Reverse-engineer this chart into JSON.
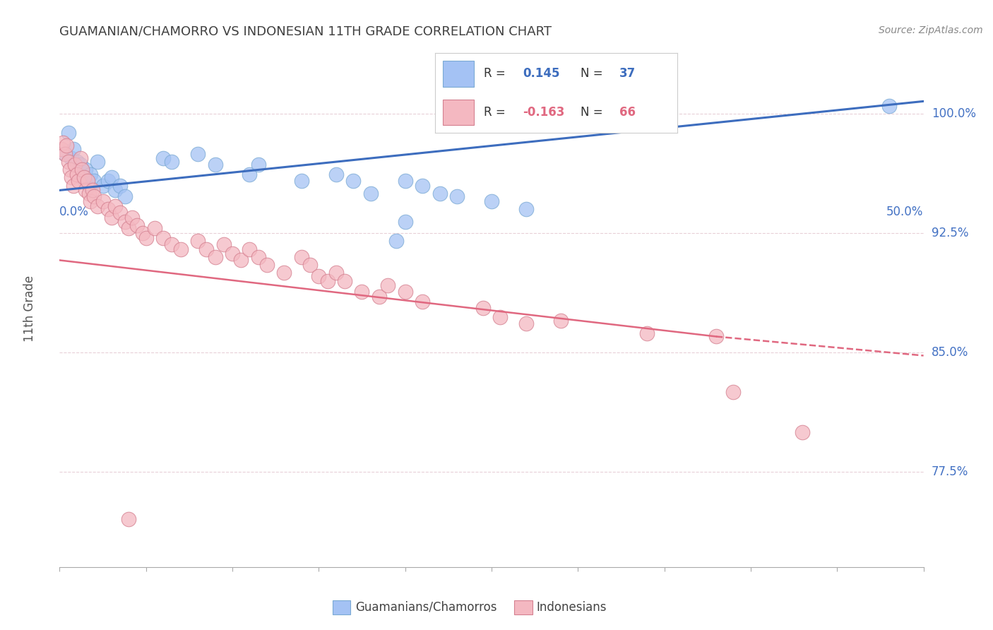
{
  "title": "GUAMANIAN/CHAMORRO VS INDONESIAN 11TH GRADE CORRELATION CHART",
  "source": "Source: ZipAtlas.com",
  "ylabel": "11th Grade",
  "ytick_labels": [
    "77.5%",
    "85.0%",
    "92.5%",
    "100.0%"
  ],
  "ytick_values": [
    0.775,
    0.85,
    0.925,
    1.0
  ],
  "xlim": [
    0.0,
    0.5
  ],
  "ylim": [
    0.715,
    1.04
  ],
  "blue_scatter_color": "#a4c2f4",
  "blue_line_color": "#3d6dbe",
  "pink_scatter_color": "#f4b8c1",
  "pink_line_color": "#e06880",
  "blue_points": [
    [
      0.003,
      0.975
    ],
    [
      0.005,
      0.988
    ],
    [
      0.007,
      0.972
    ],
    [
      0.008,
      0.978
    ],
    [
      0.01,
      0.97
    ],
    [
      0.012,
      0.968
    ],
    [
      0.013,
      0.96
    ],
    [
      0.015,
      0.965
    ],
    [
      0.017,
      0.955
    ],
    [
      0.018,
      0.962
    ],
    [
      0.02,
      0.958
    ],
    [
      0.022,
      0.97
    ],
    [
      0.025,
      0.955
    ],
    [
      0.028,
      0.958
    ],
    [
      0.03,
      0.96
    ],
    [
      0.032,
      0.952
    ],
    [
      0.035,
      0.955
    ],
    [
      0.038,
      0.948
    ],
    [
      0.06,
      0.972
    ],
    [
      0.065,
      0.97
    ],
    [
      0.08,
      0.975
    ],
    [
      0.09,
      0.968
    ],
    [
      0.11,
      0.962
    ],
    [
      0.115,
      0.968
    ],
    [
      0.14,
      0.958
    ],
    [
      0.16,
      0.962
    ],
    [
      0.17,
      0.958
    ],
    [
      0.18,
      0.95
    ],
    [
      0.2,
      0.958
    ],
    [
      0.21,
      0.955
    ],
    [
      0.22,
      0.95
    ],
    [
      0.23,
      0.948
    ],
    [
      0.25,
      0.945
    ],
    [
      0.27,
      0.94
    ],
    [
      0.2,
      0.932
    ],
    [
      0.195,
      0.92
    ],
    [
      0.48,
      1.005
    ]
  ],
  "pink_points": [
    [
      0.001,
      0.978
    ],
    [
      0.002,
      0.982
    ],
    [
      0.003,
      0.975
    ],
    [
      0.004,
      0.98
    ],
    [
      0.005,
      0.97
    ],
    [
      0.006,
      0.965
    ],
    [
      0.007,
      0.96
    ],
    [
      0.008,
      0.955
    ],
    [
      0.009,
      0.968
    ],
    [
      0.01,
      0.962
    ],
    [
      0.011,
      0.958
    ],
    [
      0.012,
      0.972
    ],
    [
      0.013,
      0.965
    ],
    [
      0.014,
      0.96
    ],
    [
      0.015,
      0.952
    ],
    [
      0.016,
      0.958
    ],
    [
      0.017,
      0.95
    ],
    [
      0.018,
      0.945
    ],
    [
      0.019,
      0.952
    ],
    [
      0.02,
      0.948
    ],
    [
      0.022,
      0.942
    ],
    [
      0.025,
      0.945
    ],
    [
      0.028,
      0.94
    ],
    [
      0.03,
      0.935
    ],
    [
      0.032,
      0.942
    ],
    [
      0.035,
      0.938
    ],
    [
      0.038,
      0.932
    ],
    [
      0.04,
      0.928
    ],
    [
      0.042,
      0.935
    ],
    [
      0.045,
      0.93
    ],
    [
      0.048,
      0.925
    ],
    [
      0.05,
      0.922
    ],
    [
      0.055,
      0.928
    ],
    [
      0.06,
      0.922
    ],
    [
      0.065,
      0.918
    ],
    [
      0.07,
      0.915
    ],
    [
      0.08,
      0.92
    ],
    [
      0.085,
      0.915
    ],
    [
      0.09,
      0.91
    ],
    [
      0.095,
      0.918
    ],
    [
      0.1,
      0.912
    ],
    [
      0.105,
      0.908
    ],
    [
      0.11,
      0.915
    ],
    [
      0.115,
      0.91
    ],
    [
      0.12,
      0.905
    ],
    [
      0.13,
      0.9
    ],
    [
      0.14,
      0.91
    ],
    [
      0.145,
      0.905
    ],
    [
      0.15,
      0.898
    ],
    [
      0.155,
      0.895
    ],
    [
      0.16,
      0.9
    ],
    [
      0.165,
      0.895
    ],
    [
      0.175,
      0.888
    ],
    [
      0.185,
      0.885
    ],
    [
      0.19,
      0.892
    ],
    [
      0.2,
      0.888
    ],
    [
      0.21,
      0.882
    ],
    [
      0.245,
      0.878
    ],
    [
      0.255,
      0.872
    ],
    [
      0.27,
      0.868
    ],
    [
      0.29,
      0.87
    ],
    [
      0.34,
      0.862
    ],
    [
      0.38,
      0.86
    ],
    [
      0.39,
      0.825
    ],
    [
      0.04,
      0.745
    ],
    [
      0.43,
      0.8
    ]
  ],
  "blue_line": [
    [
      0.0,
      0.952
    ],
    [
      0.5,
      1.008
    ]
  ],
  "pink_line_solid": [
    [
      0.0,
      0.908
    ],
    [
      0.38,
      0.86
    ]
  ],
  "pink_line_dashed": [
    [
      0.38,
      0.86
    ],
    [
      0.5,
      0.848
    ]
  ],
  "grid_color": "#e8d0d8",
  "background_color": "#ffffff",
  "axis_label_color": "#4472c4",
  "title_color": "#404040",
  "source_color": "#888888"
}
